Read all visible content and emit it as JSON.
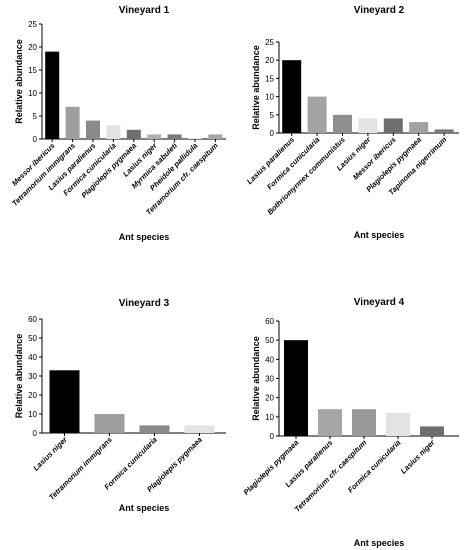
{
  "chart_data": [
    {
      "type": "bar",
      "title": "Vineyard 1",
      "xlabel": "Ant species",
      "ylabel": "Relative abundance",
      "ylim": [
        0,
        25
      ],
      "yticks": [
        0,
        5,
        10,
        15,
        20,
        25
      ],
      "categories": [
        "Messor ibericus",
        "Tetramorium immigrans",
        "Lasius paralienus",
        "Formica cunicularia",
        "Plagiolepis pygmaea",
        "Lasius niger",
        "Myrmica sabuleti",
        "Pheidole pallidula",
        "Tetramorium cfr. caespitum"
      ],
      "values": [
        19,
        7,
        4,
        3,
        2,
        1,
        1,
        0.1,
        1
      ],
      "colors": [
        "#000000",
        "#9e9e9e",
        "#8a8a8a",
        "#e3e3e3",
        "#6e6e6e",
        "#b0b0b0",
        "#7a7a7a",
        "#d6d6d6",
        "#a6a6a6"
      ],
      "grid": false
    },
    {
      "type": "bar",
      "title": "Vineyard 2",
      "xlabel": "Ant species",
      "ylabel": "Relative abundance",
      "ylim": [
        0,
        25
      ],
      "yticks": [
        0,
        5,
        10,
        15,
        20,
        25
      ],
      "categories": [
        "Lasius paralienus",
        "Formica cunicularia",
        "Bothriomyrmex communistus",
        "Lasius niger",
        "Messor ibericus",
        "Plagiolepis pygmaea",
        "Tapinoma nigerrimum"
      ],
      "values": [
        20,
        10,
        5,
        4,
        4,
        3,
        1
      ],
      "colors": [
        "#000000",
        "#a3a3a3",
        "#8f8f8f",
        "#e3e3e3",
        "#6e6e6e",
        "#a0a0a0",
        "#7a7a7a"
      ],
      "grid": false
    },
    {
      "type": "bar",
      "title": "Vineyard 3",
      "xlabel": "Ant species",
      "ylabel": "Relative abundance",
      "ylim": [
        0,
        60
      ],
      "yticks": [
        0,
        10,
        20,
        30,
        40,
        50,
        60
      ],
      "categories": [
        "Lasius niger",
        "Tetramorium immigrans",
        "Formica cunicularia",
        "Plagiolepis pygmaea"
      ],
      "values": [
        33,
        10,
        4,
        4
      ],
      "colors": [
        "#000000",
        "#9e9e9e",
        "#8a8a8a",
        "#e3e3e3"
      ],
      "grid": false
    },
    {
      "type": "bar",
      "title": "Vineyard 4",
      "xlabel": "Ant species",
      "ylabel": "Relative abundance",
      "ylim": [
        0,
        60
      ],
      "yticks": [
        0,
        10,
        20,
        30,
        40,
        50,
        60
      ],
      "categories": [
        "Plagiolepis pygmaea",
        "Lasius paralienus",
        "Tetramorium cfr. caespitum",
        "Formica cunicularia",
        "Lasius niger"
      ],
      "values": [
        50,
        14,
        14,
        12,
        5
      ],
      "colors": [
        "#000000",
        "#a6a6a6",
        "#9a9a9a",
        "#e3e3e3",
        "#6e6e6e"
      ],
      "grid": false
    }
  ]
}
